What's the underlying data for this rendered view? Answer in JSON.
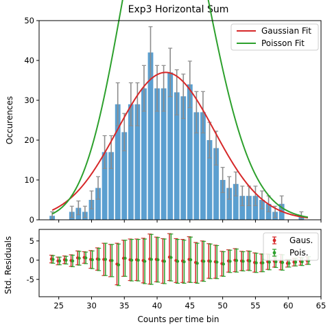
{
  "chart_data": [
    {
      "type": "bar",
      "title": "Exp3 Horizontal Sum",
      "xlabel": "",
      "ylabel": "Occurences",
      "xlim": [
        22,
        65
      ],
      "ylim": [
        0,
        50
      ],
      "yticks": [
        "0",
        "10",
        "20",
        "30",
        "40",
        "50"
      ],
      "grid": false,
      "legend_position": "top-right",
      "x": [
        24,
        25,
        26,
        27,
        28,
        29,
        30,
        31,
        32,
        33,
        34,
        35,
        36,
        37,
        38,
        39,
        40,
        41,
        42,
        43,
        44,
        45,
        46,
        47,
        48,
        49,
        50,
        51,
        52,
        53,
        54,
        55,
        56,
        57,
        58,
        59,
        60,
        61,
        62,
        63
      ],
      "values": [
        1,
        0,
        0,
        2,
        3,
        2,
        5,
        8,
        17,
        17,
        29,
        22,
        29,
        29,
        33,
        42,
        33,
        33,
        37,
        32,
        31,
        34,
        27,
        27,
        20,
        18,
        10,
        8,
        9,
        6,
        6,
        6,
        5,
        4,
        2,
        4,
        0,
        0,
        1,
        0
      ],
      "errors": [
        1.0,
        0,
        0,
        1.41,
        1.73,
        1.41,
        2.24,
        2.83,
        4.12,
        4.12,
        5.39,
        4.69,
        5.39,
        5.39,
        5.74,
        6.48,
        5.74,
        5.74,
        6.08,
        5.66,
        5.57,
        5.83,
        5.2,
        5.2,
        4.47,
        4.24,
        3.16,
        2.83,
        3.0,
        2.45,
        2.45,
        2.45,
        2.24,
        2.0,
        1.41,
        2.0,
        0,
        0,
        1.0,
        0
      ],
      "fits": [
        {
          "name": "Gaussian Fit",
          "color": "#d62728",
          "mu": 41.3,
          "sigma": 7.4,
          "amplitude": 37.0
        },
        {
          "name": "Poisson Fit",
          "color": "#2ca02c",
          "lambda": 41.6,
          "scale": 1490
        }
      ],
      "bar_color": "#5b9fd0",
      "error_color": "#8c8c8c"
    },
    {
      "type": "scatter",
      "title": "",
      "xlabel": "Counts per time bin",
      "ylabel": "Std. Residuals",
      "xlim": [
        22,
        65
      ],
      "ylim": [
        -9.5,
        8
      ],
      "xticks": [
        "25",
        "30",
        "35",
        "40",
        "45",
        "50",
        "55",
        "60",
        "65"
      ],
      "yticks": [
        "5",
        "0",
        "-5"
      ],
      "legend_position": "top-right",
      "x": [
        24,
        25,
        26,
        27,
        28,
        29,
        30,
        31,
        32,
        33,
        34,
        35,
        36,
        37,
        38,
        39,
        40,
        41,
        42,
        43,
        44,
        45,
        46,
        47,
        48,
        49,
        50,
        51,
        52,
        53,
        54,
        55,
        56,
        57,
        58,
        59,
        60,
        61,
        62,
        63
      ],
      "series": [
        {
          "name": "Gaus.",
          "color": "#d62728",
          "values": [
            0.3,
            -0.2,
            0.1,
            -0.1,
            0.6,
            0.7,
            0.2,
            0.3,
            0.2,
            -0.1,
            -1.0,
            0.5,
            0.1,
            0.1,
            -0.1,
            0.3,
            0.2,
            -0.2,
            0.8,
            -0.1,
            -0.2,
            0.2,
            -0.6,
            -0.2,
            -0.2,
            -0.4,
            -0.9,
            -0.2,
            0.0,
            -0.2,
            -0.1,
            -0.6,
            -0.7,
            -0.4,
            -0.3,
            -0.5,
            -0.8,
            -0.5,
            -0.3,
            -0.1
          ],
          "errors": [
            1.0,
            1.0,
            1.0,
            1.5,
            1.8,
            1.5,
            2.3,
            2.9,
            4.2,
            4.2,
            5.4,
            4.7,
            5.4,
            5.4,
            5.8,
            6.5,
            5.8,
            5.8,
            6.1,
            5.7,
            5.6,
            5.9,
            5.2,
            5.2,
            4.5,
            4.3,
            3.2,
            2.9,
            3.0,
            2.5,
            2.5,
            2.5,
            2.3,
            2.0,
            1.5,
            2.0,
            1.0,
            1.0,
            1.0,
            1.0
          ]
        },
        {
          "name": "Pois.",
          "color": "#2ca02c",
          "values": [
            0.2,
            -0.2,
            0.0,
            -0.2,
            0.5,
            0.6,
            0.1,
            0.2,
            0.2,
            -0.1,
            -1.2,
            0.5,
            0.0,
            0.0,
            -0.3,
            0.2,
            0.1,
            -0.3,
            0.7,
            -0.3,
            -0.4,
            0.1,
            -0.8,
            -0.3,
            -0.3,
            -0.5,
            -1.0,
            -0.3,
            -0.1,
            -0.3,
            -0.2,
            -0.7,
            -0.7,
            -0.5,
            -0.4,
            -0.6,
            -0.8,
            -0.5,
            -0.4,
            -0.1
          ],
          "errors": [
            1.0,
            1.0,
            1.0,
            1.5,
            1.8,
            1.5,
            2.3,
            2.9,
            4.2,
            4.2,
            5.4,
            4.7,
            5.4,
            5.4,
            5.8,
            6.5,
            5.8,
            5.8,
            6.1,
            5.7,
            5.6,
            5.9,
            5.2,
            5.2,
            4.5,
            4.3,
            3.2,
            2.9,
            3.0,
            2.5,
            2.5,
            2.5,
            2.3,
            2.0,
            1.5,
            2.0,
            1.0,
            1.0,
            1.0,
            1.0
          ]
        }
      ]
    }
  ]
}
